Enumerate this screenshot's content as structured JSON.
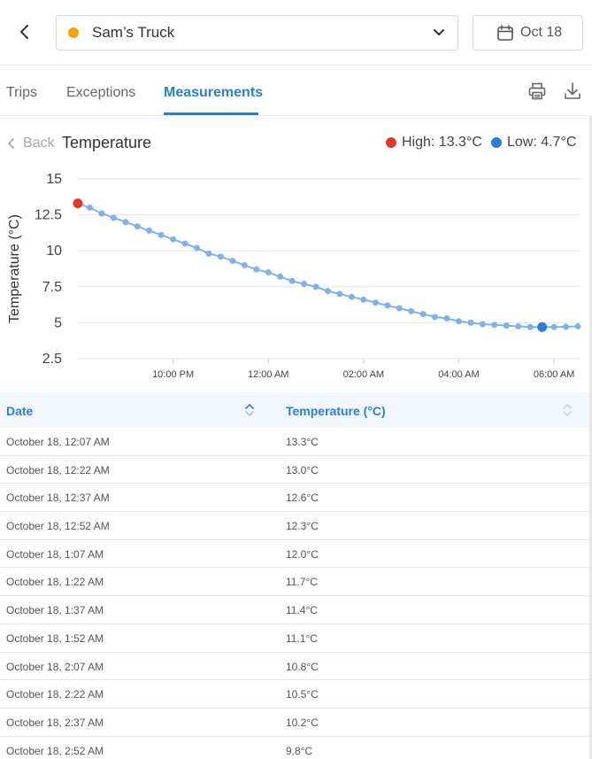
{
  "header": {
    "vehicle_name": "Sam’s Truck",
    "vehicle_status_color": "#f4a300",
    "date_label": "Oct 18"
  },
  "tabs": [
    {
      "label": "Trips",
      "active": false
    },
    {
      "label": "Exceptions",
      "active": false
    },
    {
      "label": "Measurements",
      "active": true
    }
  ],
  "toolbar": {
    "print_icon": "printer-icon",
    "download_icon": "download-icon"
  },
  "chart_header": {
    "back_label": "Back",
    "title": "Temperature",
    "legend": [
      {
        "label": "High: 13.3°C",
        "color": "#e0392b"
      },
      {
        "label": "Low: 4.7°C",
        "color": "#2a7fd4"
      }
    ]
  },
  "chart_data": {
    "type": "line",
    "ylabel": "Temperature (°C)",
    "yticks": [
      "15",
      "12.5",
      "10",
      "7.5",
      "5",
      "2.5"
    ],
    "ylim": [
      2.5,
      15
    ],
    "xticks": [
      "10:00 PM",
      "12:00 AM",
      "02:00 AM",
      "04:00 AM",
      "06:00 AM"
    ],
    "grid": true,
    "high_point": {
      "x": "8:00 PM",
      "y": 13.3,
      "color": "#e0392b"
    },
    "low_point": {
      "x": "5:45 AM",
      "y": 4.7,
      "color": "#2a7fd4"
    },
    "series": [
      {
        "color": "#7fb3e8",
        "x": [
          "8:00 PM",
          "8:15 PM",
          "8:30 PM",
          "8:45 PM",
          "9:00 PM",
          "9:15 PM",
          "9:30 PM",
          "9:45 PM",
          "10:00 PM",
          "10:15 PM",
          "10:30 PM",
          "10:45 PM",
          "11:00 PM",
          "11:15 PM",
          "11:30 PM",
          "11:45 PM",
          "12:00 AM",
          "12:15 AM",
          "12:30 AM",
          "12:45 AM",
          "1:00 AM",
          "1:15 AM",
          "1:30 AM",
          "1:45 AM",
          "2:00 AM",
          "2:15 AM",
          "2:30 AM",
          "2:45 AM",
          "3:00 AM",
          "3:15 AM",
          "3:30 AM",
          "3:45 AM",
          "4:00 AM",
          "4:15 AM",
          "4:30 AM",
          "4:45 AM",
          "5:00 AM",
          "5:15 AM",
          "5:30 AM",
          "5:45 AM",
          "6:00 AM",
          "6:15 AM",
          "6:30 AM"
        ],
        "values": [
          13.3,
          13.0,
          12.6,
          12.3,
          12.0,
          11.7,
          11.4,
          11.1,
          10.8,
          10.5,
          10.2,
          9.8,
          9.6,
          9.3,
          9.0,
          8.7,
          8.5,
          8.2,
          7.9,
          7.7,
          7.5,
          7.2,
          7.0,
          6.8,
          6.6,
          6.4,
          6.2,
          6.0,
          5.8,
          5.6,
          5.4,
          5.3,
          5.1,
          5.0,
          4.9,
          4.85,
          4.8,
          4.75,
          4.7,
          4.7,
          4.7,
          4.72,
          4.75
        ]
      }
    ]
  },
  "table": {
    "columns": [
      "Date",
      "Temperature (°C)"
    ],
    "rows": [
      [
        "October 18, 12:07 AM",
        "13.3°C"
      ],
      [
        "October 18, 12:22 AM",
        "13.0°C"
      ],
      [
        "October 18, 12:37 AM",
        "12.6°C"
      ],
      [
        "October 18, 12:52 AM",
        "12.3°C"
      ],
      [
        "October 18, 1:07 AM",
        "12.0°C"
      ],
      [
        "October 18, 1:22 AM",
        "11.7°C"
      ],
      [
        "October 18, 1:37 AM",
        "11.4°C"
      ],
      [
        "October 18, 1:52 AM",
        "11.1°C"
      ],
      [
        "October 18, 2:07 AM",
        "10.8°C"
      ],
      [
        "October 18, 2:22 AM",
        "10.5°C"
      ],
      [
        "October 18, 2:37 AM",
        "10.2°C"
      ],
      [
        "October 18, 2:52 AM",
        "9.8°C"
      ]
    ]
  }
}
